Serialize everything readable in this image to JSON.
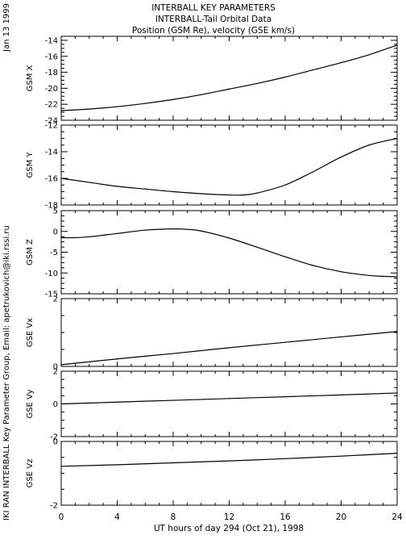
{
  "header": {
    "title_line1": "INTERBALL KEY PARAMETERS",
    "title_line2": "INTERBALL-Tail Orbital Data",
    "title_line3": "Position (GSM Re), velocity (GSE km/s)"
  },
  "side_labels": {
    "date": "Jan 13 1999",
    "credit": "IKI RAN INTERBALL Key Parameter Group, Email: apetrukovich@iki.rssi.ru"
  },
  "x_axis": {
    "label": "UT hours of day 294 (Oct 21), 1998",
    "ticks": [
      "0",
      "4",
      "8",
      "12",
      "16",
      "20",
      "24"
    ],
    "range": [
      0,
      24
    ]
  },
  "chart_data": [
    {
      "type": "line",
      "ylabel": "GSM X",
      "ylim": [
        -24,
        -13.5
      ],
      "yticks": [
        -24,
        -22,
        -20,
        -18,
        -16,
        -14
      ],
      "x": [
        0,
        2,
        4,
        6,
        8,
        10,
        12,
        14,
        16,
        18,
        20,
        22,
        24
      ],
      "values": [
        -22.8,
        -22.6,
        -22.3,
        -21.9,
        -21.4,
        -20.8,
        -20.1,
        -19.4,
        -18.6,
        -17.7,
        -16.8,
        -15.8,
        -14.6
      ]
    },
    {
      "type": "line",
      "ylabel": "GSM Y",
      "ylim": [
        -18,
        -12
      ],
      "yticks": [
        -18,
        -16,
        -14,
        -12
      ],
      "x": [
        0,
        2,
        4,
        6,
        8,
        10,
        12,
        13,
        14,
        16,
        18,
        20,
        22,
        24
      ],
      "values": [
        -16.0,
        -16.3,
        -16.6,
        -16.8,
        -17.0,
        -17.15,
        -17.25,
        -17.25,
        -17.1,
        -16.5,
        -15.5,
        -14.4,
        -13.5,
        -13.0
      ]
    },
    {
      "type": "line",
      "ylabel": "GSM Z",
      "ylim": [
        -15,
        5
      ],
      "yticks": [
        -15,
        -10,
        -5,
        0,
        5
      ],
      "x": [
        0,
        1,
        2,
        4,
        6,
        8,
        9,
        10,
        12,
        14,
        16,
        18,
        20,
        22,
        23,
        24
      ],
      "values": [
        -1.5,
        -1.5,
        -1.3,
        -0.5,
        0.3,
        0.6,
        0.5,
        0.1,
        -1.6,
        -3.8,
        -6.1,
        -8.2,
        -9.7,
        -10.6,
        -10.8,
        -10.9
      ]
    },
    {
      "type": "line",
      "ylabel": "GSE Vx",
      "ylim": [
        0,
        2
      ],
      "yticks": [
        0,
        2
      ],
      "x": [
        0,
        4,
        8,
        12,
        16,
        20,
        24
      ],
      "values": [
        0.05,
        0.22,
        0.38,
        0.55,
        0.71,
        0.87,
        1.03
      ]
    },
    {
      "type": "line",
      "ylabel": "GSE Vy",
      "ylim": [
        -2,
        2
      ],
      "yticks": [
        -2,
        0,
        2
      ],
      "x": [
        0,
        4,
        8,
        12,
        16,
        20,
        24
      ],
      "values": [
        0.0,
        0.11,
        0.22,
        0.33,
        0.44,
        0.55,
        0.67
      ]
    },
    {
      "type": "line",
      "ylabel": "GSE Vz",
      "ylim": [
        -2,
        0
      ],
      "yticks": [
        -2,
        0
      ],
      "x": [
        0,
        4,
        8,
        12,
        16,
        20,
        24
      ],
      "values": [
        -0.78,
        -0.73,
        -0.67,
        -0.61,
        -0.54,
        -0.46,
        -0.37
      ]
    }
  ]
}
